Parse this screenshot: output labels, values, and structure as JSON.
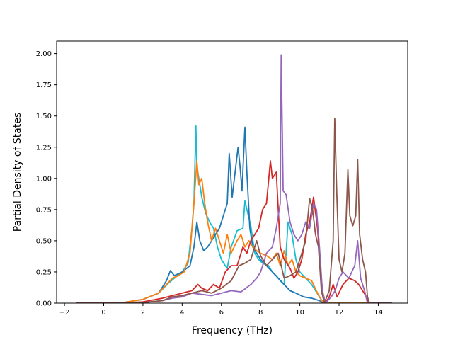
{
  "chart_data": {
    "type": "line",
    "title": "",
    "xlabel": "Frequency (THz)",
    "ylabel": "Partial Density of States",
    "xlim": [
      -2.4,
      15.5
    ],
    "ylim": [
      0,
      2.1
    ],
    "xticks": [
      -2,
      0,
      2,
      4,
      6,
      8,
      10,
      12,
      14
    ],
    "yticks": [
      0.0,
      0.25,
      0.5,
      0.75,
      1.0,
      1.25,
      1.5,
      1.75,
      2.0
    ],
    "xtick_labels": [
      "−2",
      "0",
      "2",
      "4",
      "6",
      "8",
      "10",
      "12",
      "14"
    ],
    "ytick_labels": [
      "0.00",
      "0.25",
      "0.50",
      "0.75",
      "1.00",
      "1.25",
      "1.50",
      "1.75",
      "2.00"
    ],
    "grid": false,
    "legend": "none",
    "series": [
      {
        "color": "#17becf",
        "points": [
          [
            -1.4,
            0
          ],
          [
            0,
            0
          ],
          [
            1,
            0.005
          ],
          [
            2,
            0.03
          ],
          [
            2.8,
            0.08
          ],
          [
            3.3,
            0.16
          ],
          [
            3.6,
            0.2
          ],
          [
            4,
            0.25
          ],
          [
            4.3,
            0.32
          ],
          [
            4.5,
            0.6
          ],
          [
            4.6,
            0.8
          ],
          [
            4.7,
            1.42
          ],
          [
            4.75,
            1.1
          ],
          [
            4.85,
            1.0
          ],
          [
            5,
            0.85
          ],
          [
            5.2,
            0.72
          ],
          [
            5.4,
            0.65
          ],
          [
            5.6,
            0.6
          ],
          [
            5.8,
            0.45
          ],
          [
            6,
            0.35
          ],
          [
            6.2,
            0.3
          ],
          [
            6.3,
            0.28
          ],
          [
            6.5,
            0.45
          ],
          [
            6.8,
            0.58
          ],
          [
            7.1,
            0.6
          ],
          [
            7.2,
            0.82
          ],
          [
            7.3,
            0.75
          ],
          [
            7.5,
            0.62
          ],
          [
            7.7,
            0.4
          ],
          [
            7.9,
            0.35
          ],
          [
            8.1,
            0.32
          ],
          [
            8.4,
            0.3
          ],
          [
            8.6,
            0.25
          ],
          [
            8.8,
            0.22
          ],
          [
            9.0,
            0.18
          ],
          [
            9.2,
            0.15
          ],
          [
            9.4,
            0.65
          ],
          [
            9.6,
            0.55
          ],
          [
            9.8,
            0.35
          ],
          [
            10,
            0.25
          ],
          [
            10.3,
            0.2
          ],
          [
            10.6,
            0.15
          ],
          [
            11,
            0.05
          ],
          [
            11.2,
            0.0
          ],
          [
            14.7,
            0
          ]
        ]
      },
      {
        "color": "#1f77b4",
        "points": [
          [
            -1.4,
            0
          ],
          [
            0,
            0
          ],
          [
            1,
            0.005
          ],
          [
            2,
            0.03
          ],
          [
            2.8,
            0.08
          ],
          [
            3.2,
            0.18
          ],
          [
            3.4,
            0.26
          ],
          [
            3.6,
            0.22
          ],
          [
            4,
            0.25
          ],
          [
            4.4,
            0.3
          ],
          [
            4.6,
            0.45
          ],
          [
            4.75,
            0.65
          ],
          [
            4.9,
            0.5
          ],
          [
            5.1,
            0.42
          ],
          [
            5.3,
            0.45
          ],
          [
            5.5,
            0.5
          ],
          [
            5.7,
            0.55
          ],
          [
            5.9,
            0.6
          ],
          [
            6.1,
            0.7
          ],
          [
            6.3,
            0.8
          ],
          [
            6.4,
            1.2
          ],
          [
            6.55,
            0.85
          ],
          [
            6.7,
            1.05
          ],
          [
            6.85,
            1.25
          ],
          [
            6.95,
            1.1
          ],
          [
            7.05,
            0.9
          ],
          [
            7.2,
            1.41
          ],
          [
            7.3,
            1.05
          ],
          [
            7.45,
            0.6
          ],
          [
            7.6,
            0.45
          ],
          [
            7.8,
            0.4
          ],
          [
            8,
            0.35
          ],
          [
            8.3,
            0.3
          ],
          [
            8.6,
            0.25
          ],
          [
            8.9,
            0.2
          ],
          [
            9.2,
            0.15
          ],
          [
            9.5,
            0.1
          ],
          [
            9.8,
            0.08
          ],
          [
            10.2,
            0.05
          ],
          [
            10.6,
            0.04
          ],
          [
            11,
            0.02
          ],
          [
            11.2,
            0.0
          ],
          [
            14.7,
            0
          ]
        ]
      },
      {
        "color": "#ff7f0e",
        "points": [
          [
            -1.4,
            0
          ],
          [
            0,
            0
          ],
          [
            1,
            0.005
          ],
          [
            2,
            0.03
          ],
          [
            2.8,
            0.08
          ],
          [
            3.2,
            0.15
          ],
          [
            3.5,
            0.2
          ],
          [
            3.8,
            0.22
          ],
          [
            4.1,
            0.25
          ],
          [
            4.4,
            0.4
          ],
          [
            4.6,
            0.8
          ],
          [
            4.75,
            1.14
          ],
          [
            4.85,
            0.95
          ],
          [
            5,
            1.0
          ],
          [
            5.15,
            0.8
          ],
          [
            5.3,
            0.65
          ],
          [
            5.5,
            0.5
          ],
          [
            5.7,
            0.6
          ],
          [
            5.9,
            0.5
          ],
          [
            6.1,
            0.4
          ],
          [
            6.3,
            0.55
          ],
          [
            6.5,
            0.4
          ],
          [
            6.8,
            0.5
          ],
          [
            7.0,
            0.55
          ],
          [
            7.2,
            0.45
          ],
          [
            7.4,
            0.5
          ],
          [
            7.6,
            0.45
          ],
          [
            7.8,
            0.42
          ],
          [
            8.0,
            0.4
          ],
          [
            8.3,
            0.38
          ],
          [
            8.6,
            0.35
          ],
          [
            8.8,
            0.4
          ],
          [
            9.0,
            0.3
          ],
          [
            9.2,
            0.42
          ],
          [
            9.4,
            0.3
          ],
          [
            9.6,
            0.35
          ],
          [
            9.8,
            0.25
          ],
          [
            10,
            0.22
          ],
          [
            10.3,
            0.2
          ],
          [
            10.6,
            0.18
          ],
          [
            10.9,
            0.08
          ],
          [
            11.2,
            0.0
          ],
          [
            14.7,
            0
          ]
        ]
      },
      {
        "color": "#d62728",
        "points": [
          [
            -1.4,
            0
          ],
          [
            0,
            0
          ],
          [
            1,
            0.002
          ],
          [
            2,
            0.01
          ],
          [
            3,
            0.04
          ],
          [
            3.5,
            0.06
          ],
          [
            4,
            0.08
          ],
          [
            4.5,
            0.1
          ],
          [
            4.8,
            0.15
          ],
          [
            5,
            0.12
          ],
          [
            5.3,
            0.1
          ],
          [
            5.6,
            0.15
          ],
          [
            5.9,
            0.12
          ],
          [
            6.2,
            0.25
          ],
          [
            6.5,
            0.3
          ],
          [
            6.8,
            0.3
          ],
          [
            7.1,
            0.45
          ],
          [
            7.3,
            0.4
          ],
          [
            7.5,
            0.5
          ],
          [
            7.7,
            0.55
          ],
          [
            7.9,
            0.6
          ],
          [
            8.1,
            0.75
          ],
          [
            8.3,
            0.8
          ],
          [
            8.5,
            1.14
          ],
          [
            8.6,
            1.0
          ],
          [
            8.8,
            1.05
          ],
          [
            9.0,
            0.45
          ],
          [
            9.2,
            0.35
          ],
          [
            9.5,
            0.28
          ],
          [
            9.7,
            0.2
          ],
          [
            9.9,
            0.25
          ],
          [
            10.1,
            0.35
          ],
          [
            10.3,
            0.55
          ],
          [
            10.5,
            0.65
          ],
          [
            10.7,
            0.85
          ],
          [
            10.9,
            0.6
          ],
          [
            11.0,
            0.4
          ],
          [
            11.15,
            0.1
          ],
          [
            11.3,
            0.0
          ],
          [
            11.5,
            0.05
          ],
          [
            11.7,
            0.15
          ],
          [
            11.9,
            0.05
          ],
          [
            12.2,
            0.15
          ],
          [
            12.5,
            0.2
          ],
          [
            12.8,
            0.18
          ],
          [
            13.0,
            0.15
          ],
          [
            13.2,
            0.1
          ],
          [
            13.4,
            0.05
          ],
          [
            13.5,
            0.0
          ],
          [
            14.7,
            0
          ]
        ]
      },
      {
        "color": "#9467bd",
        "points": [
          [
            -1.4,
            0
          ],
          [
            0,
            0
          ],
          [
            1,
            0.001
          ],
          [
            2,
            0.005
          ],
          [
            3,
            0.02
          ],
          [
            3.5,
            0.04
          ],
          [
            4,
            0.05
          ],
          [
            4.5,
            0.08
          ],
          [
            5,
            0.07
          ],
          [
            5.5,
            0.06
          ],
          [
            6,
            0.08
          ],
          [
            6.5,
            0.1
          ],
          [
            7,
            0.09
          ],
          [
            7.5,
            0.15
          ],
          [
            7.8,
            0.2
          ],
          [
            8.0,
            0.25
          ],
          [
            8.3,
            0.4
          ],
          [
            8.6,
            0.45
          ],
          [
            8.8,
            0.6
          ],
          [
            9.0,
            0.8
          ],
          [
            9.05,
            1.99
          ],
          [
            9.15,
            0.9
          ],
          [
            9.3,
            0.87
          ],
          [
            9.5,
            0.65
          ],
          [
            9.7,
            0.55
          ],
          [
            9.9,
            0.5
          ],
          [
            10.1,
            0.55
          ],
          [
            10.3,
            0.65
          ],
          [
            10.5,
            0.6
          ],
          [
            10.7,
            0.8
          ],
          [
            10.85,
            0.75
          ],
          [
            11.0,
            0.45
          ],
          [
            11.15,
            0.1
          ],
          [
            11.3,
            0.0
          ],
          [
            11.6,
            0.05
          ],
          [
            11.8,
            0.1
          ],
          [
            12.0,
            0.2
          ],
          [
            12.2,
            0.25
          ],
          [
            12.5,
            0.2
          ],
          [
            12.8,
            0.3
          ],
          [
            12.95,
            0.5
          ],
          [
            13.1,
            0.2
          ],
          [
            13.3,
            0.1
          ],
          [
            13.45,
            0.0
          ],
          [
            14.7,
            0
          ]
        ]
      },
      {
        "color": "#8c564b",
        "points": [
          [
            -1.4,
            0
          ],
          [
            0,
            0
          ],
          [
            1,
            0.001
          ],
          [
            2,
            0.005
          ],
          [
            3,
            0.02
          ],
          [
            3.5,
            0.05
          ],
          [
            4,
            0.06
          ],
          [
            4.5,
            0.08
          ],
          [
            5,
            0.1
          ],
          [
            5.5,
            0.08
          ],
          [
            6,
            0.12
          ],
          [
            6.5,
            0.18
          ],
          [
            6.9,
            0.3
          ],
          [
            7.2,
            0.32
          ],
          [
            7.5,
            0.35
          ],
          [
            7.8,
            0.5
          ],
          [
            8.0,
            0.38
          ],
          [
            8.3,
            0.3
          ],
          [
            8.6,
            0.35
          ],
          [
            8.9,
            0.4
          ],
          [
            9.2,
            0.2
          ],
          [
            9.5,
            0.22
          ],
          [
            9.8,
            0.25
          ],
          [
            10,
            0.35
          ],
          [
            10.3,
            0.5
          ],
          [
            10.5,
            0.84
          ],
          [
            10.65,
            0.75
          ],
          [
            10.8,
            0.55
          ],
          [
            10.95,
            0.45
          ],
          [
            11.1,
            0.1
          ],
          [
            11.25,
            0.0
          ],
          [
            11.5,
            0.1
          ],
          [
            11.7,
            0.5
          ],
          [
            11.78,
            1.48
          ],
          [
            11.88,
            0.9
          ],
          [
            12.0,
            0.35
          ],
          [
            12.15,
            0.25
          ],
          [
            12.3,
            0.4
          ],
          [
            12.45,
            1.07
          ],
          [
            12.55,
            0.7
          ],
          [
            12.7,
            0.62
          ],
          [
            12.85,
            0.7
          ],
          [
            12.95,
            1.15
          ],
          [
            13.05,
            0.55
          ],
          [
            13.2,
            0.35
          ],
          [
            13.35,
            0.25
          ],
          [
            13.45,
            0.05
          ],
          [
            13.55,
            0.0
          ],
          [
            14.7,
            0
          ]
        ]
      }
    ]
  }
}
